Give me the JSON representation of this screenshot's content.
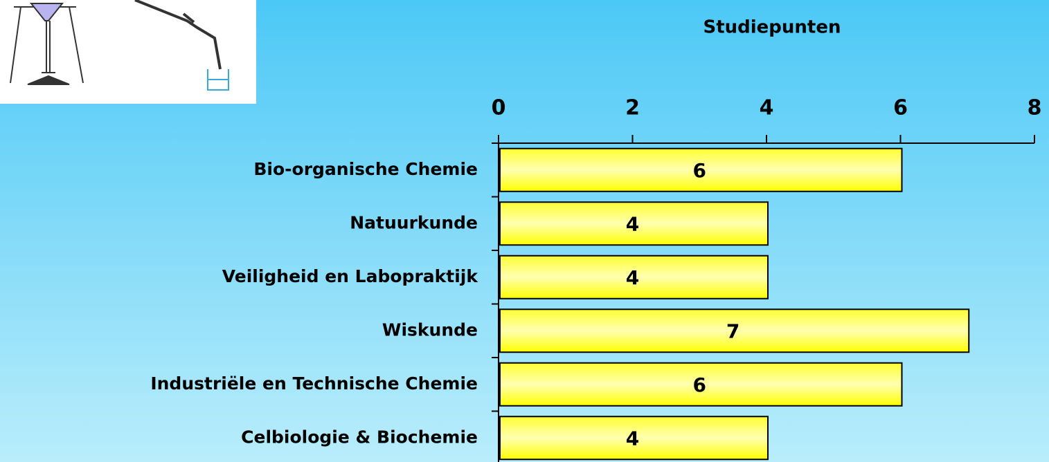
{
  "chart_data": {
    "type": "bar",
    "orientation": "horizontal",
    "xlabel": "Studiepunten",
    "categories": [
      "Bio-organische Chemie",
      "Natuurkunde",
      "Veiligheid en Labopraktijk",
      "Wiskunde",
      "Industriële en Technische Chemie",
      "Celbiologie & Biochemie"
    ],
    "values": [
      6,
      4,
      4,
      7,
      6,
      4
    ],
    "color": "#ffff00",
    "xlim": [
      0,
      8
    ],
    "xticks": [
      0,
      2,
      4,
      6,
      8
    ]
  }
}
